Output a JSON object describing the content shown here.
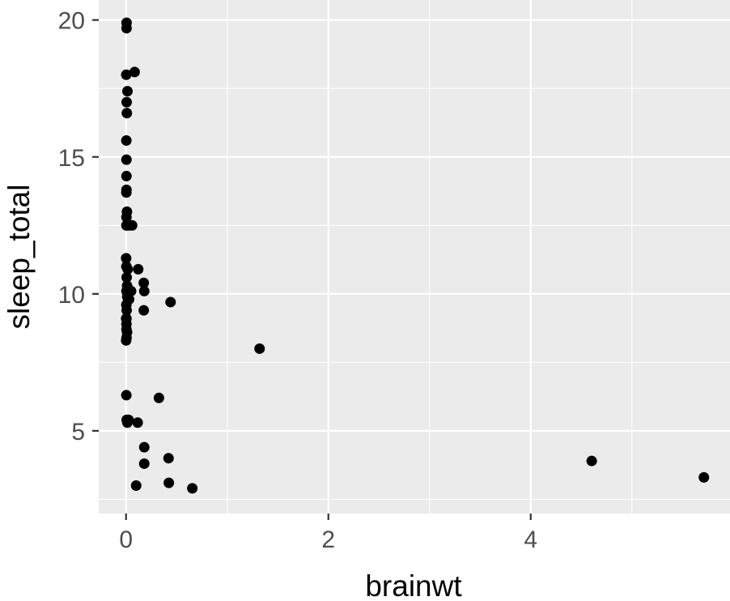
{
  "chart_data": {
    "type": "scatter",
    "title": "",
    "xlabel": "brainwt",
    "ylabel": "sleep_total",
    "xlim": [
      -0.27,
      5.97
    ],
    "ylim": [
      1.98,
      20.73
    ],
    "x_ticks": [
      0,
      2,
      4
    ],
    "x_tick_labels": [
      "0",
      "2",
      "4"
    ],
    "y_ticks": [
      5,
      10,
      15,
      20
    ],
    "y_tick_labels": [
      "5",
      "10",
      "15",
      "20"
    ],
    "grid": true,
    "legend": "none",
    "panel_color": "#ebebeb",
    "grid_color": "#ffffff",
    "point_color": "#000000",
    "x": [
      0.005,
      0.005,
      0.002,
      0.085,
      0.014,
      0.006,
      0.008,
      0.003,
      0.004,
      0.004,
      0.004,
      0.003,
      0.009,
      0.004,
      0.006,
      0.0033,
      0.032,
      0.06,
      0.001,
      0.003,
      0.016,
      0.006,
      0.01,
      0.12,
      0.004,
      0.175,
      0.18,
      0.05,
      0.012,
      0.02,
      0.03,
      0.003,
      0.006,
      0.001,
      0.004,
      0.005,
      0.01,
      0.175,
      0.44,
      0.001,
      0.004,
      0.02,
      0.003,
      0.006,
      0.013,
      0.325,
      0.025,
      0.004,
      0.115,
      0.18,
      0.42,
      0.423,
      0.18,
      0.655,
      0.1,
      1.32,
      4.603,
      5.712
    ],
    "y": [
      19.9,
      19.7,
      18.0,
      18.1,
      17.4,
      17.0,
      16.6,
      15.6,
      14.9,
      14.3,
      13.8,
      13.7,
      13.0,
      12.8,
      12.5,
      12.5,
      12.5,
      12.5,
      11.3,
      11.0,
      10.9,
      10.6,
      10.3,
      10.9,
      10.1,
      10.4,
      10.1,
      10.1,
      9.9,
      9.8,
      9.8,
      9.6,
      9.4,
      9.1,
      8.7,
      8.4,
      8.6,
      9.4,
      9.7,
      8.3,
      9.1,
      10.0,
      6.3,
      5.4,
      5.3,
      6.2,
      5.4,
      8.9,
      5.3,
      4.4,
      4.0,
      3.1,
      3.8,
      2.9,
      3.0,
      8.0,
      3.9,
      3.3
    ]
  }
}
